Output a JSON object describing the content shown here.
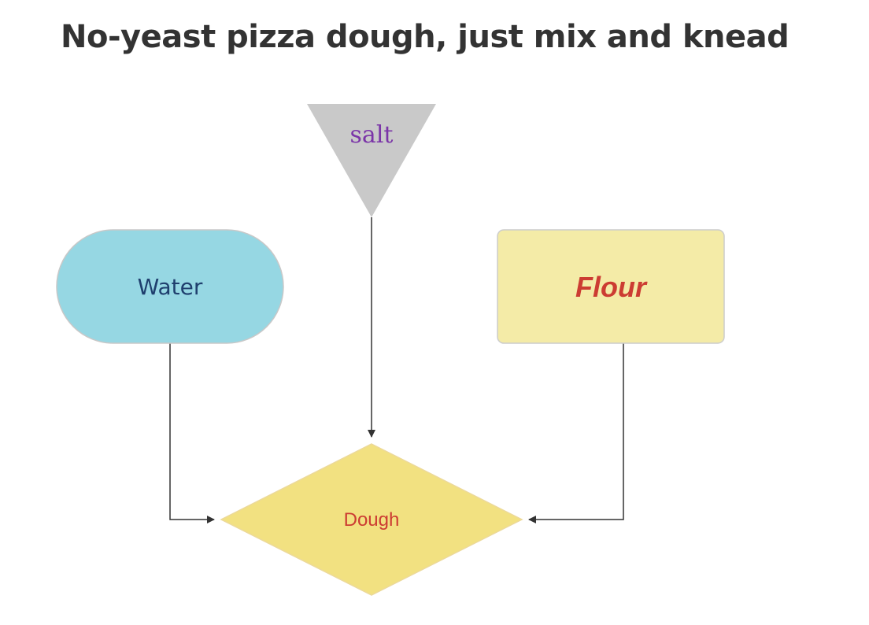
{
  "title": "No-yeast pizza dough, just mix and knead",
  "nodes": {
    "salt": {
      "label": "salt",
      "shape": "inverted-triangle",
      "fill": "#c9c9c9"
    },
    "water": {
      "label": "Water",
      "shape": "stadium",
      "fill": "#96d7e3"
    },
    "flour": {
      "label": "Flour",
      "shape": "rounded-rectangle",
      "fill": "#f4eba7"
    },
    "dough": {
      "label": "Dough",
      "shape": "diamond",
      "fill": "#f2e181"
    }
  },
  "edges": [
    {
      "from": "salt",
      "to": "dough"
    },
    {
      "from": "water",
      "to": "dough"
    },
    {
      "from": "flour",
      "to": "dough"
    }
  ]
}
